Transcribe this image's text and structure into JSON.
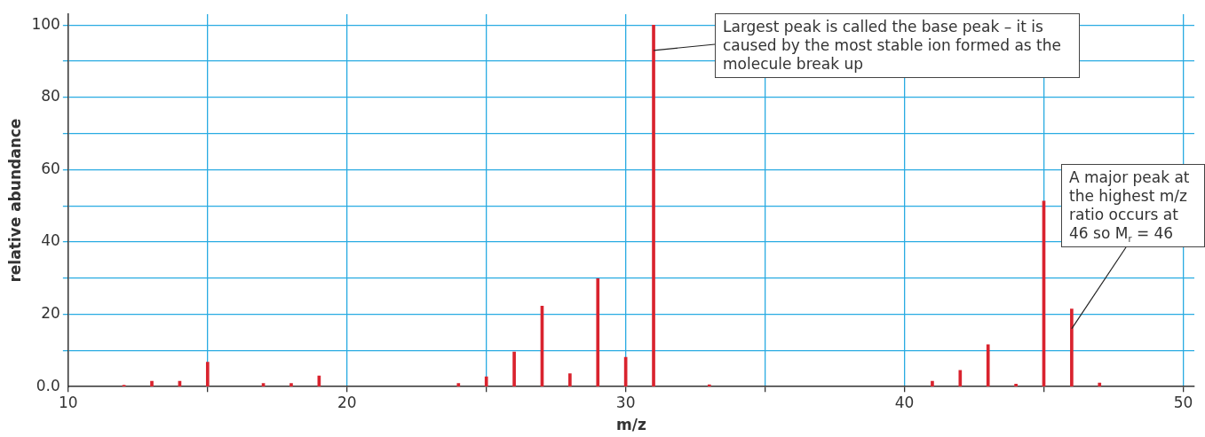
{
  "chart_data": {
    "type": "bar",
    "xlabel": "m/z",
    "ylabel": "relative abundance",
    "x": [
      12,
      13,
      14,
      15,
      17,
      18,
      19,
      24,
      25,
      26,
      27,
      28,
      29,
      30,
      31,
      33,
      41,
      42,
      43,
      44,
      45,
      46,
      47
    ],
    "values": [
      0.4,
      1.5,
      1.5,
      6.8,
      0.9,
      0.9,
      3,
      0.9,
      2.7,
      9.6,
      22.3,
      3.6,
      29.9,
      8.1,
      100,
      0.5,
      1.5,
      4.5,
      11.6,
      0.7,
      51.3,
      21.5,
      1
    ],
    "color": "#d9232e",
    "xlim": [
      10,
      50.4
    ],
    "xticks": [
      10,
      {
        "value": 15,
        "label": null
      },
      20,
      {
        "value": 25,
        "label": null
      },
      30,
      {
        "value": 35,
        "label": null
      },
      40,
      {
        "value": 45,
        "label": null
      },
      50
    ],
    "ylim": [
      0,
      103
    ],
    "yticks": [
      {
        "value": 0,
        "label": "0.0"
      },
      {
        "value": 10,
        "label": null
      },
      20,
      {
        "value": 30,
        "label": null
      },
      40,
      {
        "value": 50,
        "label": null
      },
      60,
      {
        "value": 70,
        "label": null
      },
      80,
      {
        "value": 90,
        "label": null
      },
      100
    ],
    "grid": true,
    "annotations": [
      {
        "text": "Largest peak is called the base peak – it is caused by the most stable ion formed as the molecule break up",
        "x": 31,
        "y": 93
      },
      {
        "text": "A major peak at the highest m/z ratio occurs at 46 so M$_{r}$ = 46",
        "x": 46,
        "y": 16
      }
    ]
  }
}
